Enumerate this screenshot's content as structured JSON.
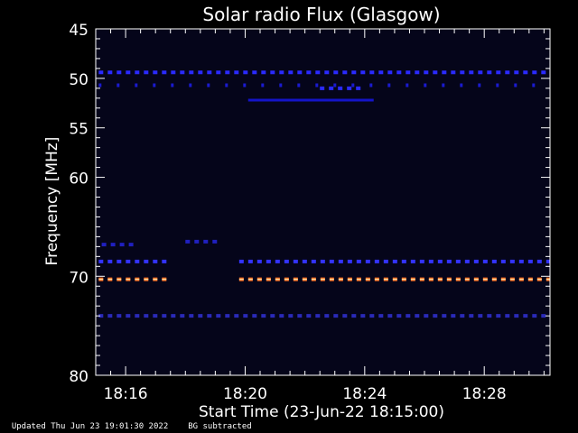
{
  "chart_data": {
    "type": "heatmap",
    "title": "Solar radio Flux (Glasgow)",
    "xlabel": "Start Time (23-Jun-22 18:15:00)",
    "ylabel": "Frequency [MHz]",
    "x_unit": "minutes after 18:15:00",
    "xlim": [
      0,
      15.2
    ],
    "ylim": [
      45,
      80
    ],
    "x_ticks": [
      {
        "label": "18:16",
        "value": 1
      },
      {
        "label": "18:20",
        "value": 5
      },
      {
        "label": "18:24",
        "value": 9
      },
      {
        "label": "18:28",
        "value": 13
      }
    ],
    "y_ticks": [
      45,
      50,
      55,
      60,
      70,
      80
    ],
    "background_color": "#05051a",
    "bands": [
      {
        "freq": 49.4,
        "start": 0.1,
        "end": 15.2,
        "color": "#2a2aff",
        "style": "dashed"
      },
      {
        "freq": 50.7,
        "start": 0.1,
        "end": 15.2,
        "color": "#1a1ad0",
        "style": "sparse"
      },
      {
        "freq": 51.0,
        "start": 7.5,
        "end": 9.0,
        "color": "#2a2aff",
        "style": "dashed"
      },
      {
        "freq": 52.2,
        "start": 5.1,
        "end": 9.3,
        "color": "#1414c8",
        "style": "solid"
      },
      {
        "freq": 66.8,
        "start": 0.2,
        "end": 1.4,
        "color": "#2020c0",
        "style": "dashed"
      },
      {
        "freq": 66.5,
        "start": 3.0,
        "end": 4.2,
        "color": "#2020c0",
        "style": "dashed"
      },
      {
        "freq": 68.5,
        "start": 0.1,
        "end": 2.5,
        "color": "#3333ff",
        "style": "dashed"
      },
      {
        "freq": 68.5,
        "start": 4.8,
        "end": 15.2,
        "color": "#3333ff",
        "style": "dashed"
      },
      {
        "freq": 70.3,
        "start": 0.1,
        "end": 2.5,
        "color": "#ff6a1a",
        "style": "dashed"
      },
      {
        "freq": 70.3,
        "start": 4.8,
        "end": 15.2,
        "color": "#ff6a1a",
        "style": "dashed"
      },
      {
        "freq": 74.0,
        "start": 0.1,
        "end": 15.2,
        "color": "#2a2ab8",
        "style": "dashed"
      }
    ]
  },
  "footer": {
    "updated": "Updated Thu Jun 23 19:01:30 2022",
    "note": "BG subtracted"
  }
}
